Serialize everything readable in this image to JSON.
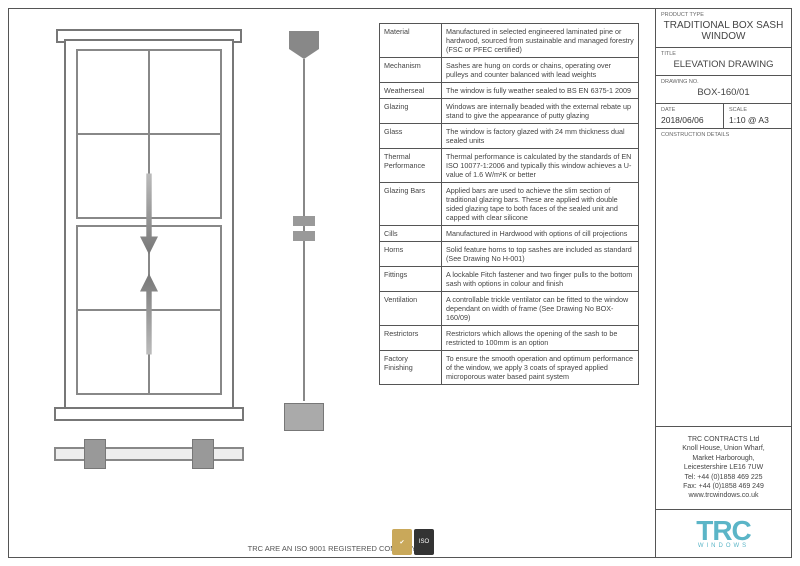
{
  "titleblock": {
    "product_type_label": "Product Type",
    "product_type": "TRADITIONAL BOX SASH WINDOW",
    "title_label": "Title",
    "title": "ELEVATION DRAWING",
    "drawing_no_label": "Drawing No.",
    "drawing_no": "BOX-160/01",
    "date_label": "Date",
    "date": "2018/06/06",
    "scale_label": "Scale",
    "scale": "1:10 @ A3",
    "construction_label": "Construction Details"
  },
  "company": {
    "name": "TRC CONTRACTS Ltd",
    "addr1": "Knoll House, Union Wharf,",
    "addr2": "Market Harborough,",
    "addr3": "Leicestershire LE16 7UW",
    "tel": "Tel: +44 (0)1858 469 225",
    "fax": "Fax: +44 (0)1858 469 249",
    "web": "www.trcwindows.co.uk",
    "logo_main": "TRC",
    "logo_sub": "WINDOWS"
  },
  "footer": {
    "iso_text": "TRC ARE AN ISO 9001 REGISTERED COMPANY"
  },
  "specs": [
    {
      "k": "Material",
      "v": "Manufactured in selected engineered laminated pine or hardwood, sourced from sustainable and managed forestry (FSC or PFEC certified)"
    },
    {
      "k": "Mechanism",
      "v": "Sashes are hung on cords or chains, operating over pulleys and counter balanced with lead weights"
    },
    {
      "k": "Weatherseal",
      "v": "The window is fully weather sealed to BS EN 6375-1 2009"
    },
    {
      "k": "Glazing",
      "v": "Windows are internally beaded with the external rebate up stand to give the appearance of putty glazing"
    },
    {
      "k": "Glass",
      "v": "The window is factory glazed with 24 mm thickness dual sealed units"
    },
    {
      "k": "Thermal Performance",
      "v": "Thermal performance is calculated by the standards of EN ISO 10077-1:2006 and typically this window achieves a U-value of 1.6 W/m²K or better"
    },
    {
      "k": "Glazing Bars",
      "v": "Applied bars are used to achieve the slim section of traditional glazing bars. These are applied with double sided glazing tape to both faces of the sealed unit and capped with clear silicone"
    },
    {
      "k": "Cills",
      "v": "Manufactured in Hardwood with options of cill projections"
    },
    {
      "k": "Horns",
      "v": "Solid feature horns to top sashes are included as standard (See Drawing No H-001)"
    },
    {
      "k": "Fittings",
      "v": "A lockable Fitch fastener and two finger pulls to the bottom sash with options in colour and finish"
    },
    {
      "k": "Ventilation",
      "v": "A controllable trickle ventilator can be fitted to the window dependant on width of frame (See Drawing No BOX-160/09)"
    },
    {
      "k": "Restrictors",
      "v": "Restrictors which allows the opening of the sash to be restricted to 100mm is an option"
    },
    {
      "k": "Factory Finishing",
      "v": "To ensure the smooth operation and optimum performance of the window, we apply 3 coats of sprayed applied microporous water based paint system"
    }
  ],
  "colors": {
    "border": "#555555",
    "accent": "#5bb5c7",
    "line": "#888888"
  }
}
